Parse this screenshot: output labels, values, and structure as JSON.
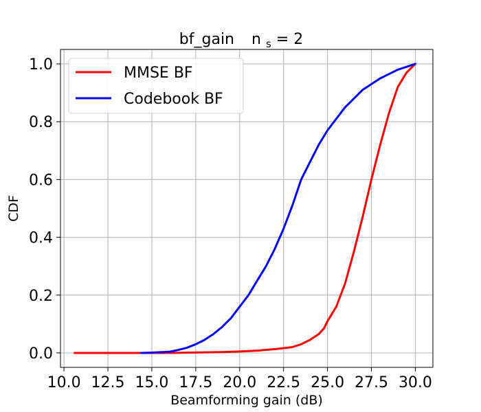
{
  "chart_data": {
    "type": "line",
    "title": "bf_gain",
    "title_ns_base": "n",
    "title_ns_sub": "s",
    "title_ns_rest": " = 2",
    "xlabel": "Beamforming gain (dB)",
    "ylabel": "CDF",
    "xlim": [
      9.8,
      31.0
    ],
    "ylim": [
      -0.05,
      1.05
    ],
    "xticks": [
      10.0,
      12.5,
      15.0,
      17.5,
      20.0,
      22.5,
      25.0,
      27.5,
      30.0
    ],
    "xtick_labels": [
      "10.0",
      "12.5",
      "15.0",
      "17.5",
      "20.0",
      "22.5",
      "25.0",
      "27.5",
      "30.0"
    ],
    "yticks": [
      0.0,
      0.2,
      0.4,
      0.6,
      0.8,
      1.0
    ],
    "ytick_labels": [
      "0.0",
      "0.2",
      "0.4",
      "0.6",
      "0.8",
      "1.0"
    ],
    "grid": true,
    "legend_position": "upper-left",
    "series": [
      {
        "name": "MMSE BF",
        "color": "#ff0000",
        "x": [
          10.6,
          12.0,
          14.0,
          16.0,
          17.0,
          18.0,
          19.0,
          20.0,
          21.0,
          22.0,
          23.0,
          23.5,
          24.0,
          24.5,
          24.8,
          25.0,
          25.5,
          26.0,
          26.5,
          27.0,
          27.5,
          28.0,
          28.5,
          29.0,
          29.5,
          30.0
        ],
        "y": [
          0.0,
          0.0,
          0.0,
          0.0,
          0.001,
          0.002,
          0.003,
          0.005,
          0.008,
          0.013,
          0.02,
          0.03,
          0.045,
          0.065,
          0.085,
          0.11,
          0.16,
          0.24,
          0.35,
          0.47,
          0.6,
          0.72,
          0.83,
          0.92,
          0.97,
          1.0
        ]
      },
      {
        "name": "Codebook BF",
        "color": "#0000ff",
        "x": [
          14.4,
          15.0,
          16.0,
          16.5,
          17.0,
          17.5,
          18.0,
          18.5,
          19.0,
          19.5,
          20.0,
          20.5,
          21.0,
          21.5,
          22.0,
          22.5,
          23.0,
          23.5,
          24.0,
          24.5,
          25.0,
          25.5,
          26.0,
          26.5,
          27.0,
          27.5,
          28.0,
          28.5,
          29.0,
          29.5,
          30.0
        ],
        "y": [
          0.0,
          0.001,
          0.004,
          0.01,
          0.018,
          0.03,
          0.045,
          0.065,
          0.09,
          0.12,
          0.16,
          0.2,
          0.25,
          0.3,
          0.36,
          0.43,
          0.51,
          0.6,
          0.66,
          0.72,
          0.77,
          0.81,
          0.85,
          0.88,
          0.91,
          0.93,
          0.95,
          0.965,
          0.98,
          0.99,
          1.0
        ]
      }
    ]
  }
}
